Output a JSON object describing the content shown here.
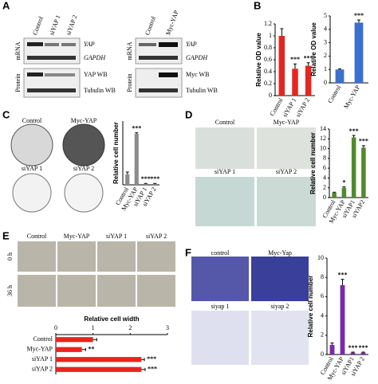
{
  "panel_labels": [
    "A",
    "B",
    "C",
    "D",
    "E",
    "F"
  ],
  "blots": {
    "left": {
      "columns": [
        "Control",
        "siYAP 1",
        "siYAP 2"
      ],
      "sections": [
        "mRNA",
        "Protein"
      ],
      "bands": [
        "YAP",
        "GAPDH",
        "YAP WB",
        "Tubulin WB"
      ]
    },
    "right": {
      "columns": [
        "Control",
        "Myc-YAP"
      ],
      "sections": [
        "mRNA",
        "Protein"
      ],
      "bands": [
        "YAP",
        "GAPDH",
        "Myc WB",
        "Tubulin WB"
      ]
    }
  },
  "colony_images": [
    "Control",
    "Myc-YAP",
    "siYAP 1",
    "siYAP 2"
  ],
  "invasion_images": [
    "Control",
    "Myc-YAP",
    "siYAP 1",
    "siYAP 2"
  ],
  "wound_images": {
    "columns": [
      "Control",
      "Myc-YAP",
      "siYAP 1",
      "siYAP 2"
    ],
    "rows": [
      "0 h",
      "36 h"
    ]
  },
  "transwell_images": [
    "control",
    "Myc-Yap",
    "siyap 1",
    "siyap 2"
  ],
  "chart_data": [
    {
      "type": "bar",
      "y_label": "Relative OD value",
      "categories": [
        "Control",
        "siYAP 1",
        "siYAP 2"
      ],
      "values": [
        1.0,
        0.45,
        0.5
      ],
      "errors": [
        0.12,
        0.08,
        0.05
      ],
      "significance": [
        null,
        "***",
        "***"
      ],
      "color": "#e8241f",
      "ylim": [
        0,
        1.2
      ],
      "yticks": [
        0,
        0.2,
        0.4,
        0.6,
        0.8,
        1,
        1.2
      ]
    },
    {
      "type": "bar",
      "y_label": "Relative OD value",
      "categories": [
        "Control",
        "Myc-YAP"
      ],
      "values": [
        1.0,
        4.5
      ],
      "errors": [
        0.05,
        0.2
      ],
      "significance": [
        null,
        "***"
      ],
      "color": "#3b6fd0",
      "ylim": [
        0,
        5
      ],
      "yticks": [
        0,
        1,
        2,
        3,
        4,
        5
      ]
    },
    {
      "type": "bar",
      "y_label": "Relative cell number",
      "categories": [
        "Control",
        "Myc-YAP",
        "siYAP 1",
        "siYAP 2"
      ],
      "values": [
        1.0,
        4.8,
        0.1,
        0.1
      ],
      "errors": [
        0.2,
        0.1,
        0.03,
        0.03
      ],
      "significance": [
        null,
        "***",
        "***",
        "***"
      ],
      "color": "#8c8c8c",
      "ylim": [
        0,
        6
      ]
    },
    {
      "type": "bar",
      "y_label": "Relative cell number",
      "categories": [
        "Control",
        "Myc-YAP",
        "siYAP1",
        "siYAP2"
      ],
      "values": [
        1.0,
        2.0,
        12.3,
        10.2
      ],
      "errors": [
        0.1,
        0.2,
        0.4,
        0.4
      ],
      "significance": [
        null,
        "*",
        "***",
        "***"
      ],
      "color": "#4f8a2b",
      "ylim": [
        0,
        14
      ],
      "yticks": [
        0,
        2,
        4,
        6,
        8,
        10,
        12,
        14
      ]
    },
    {
      "type": "hbar",
      "x_label": "Relative cell width",
      "categories": [
        "Control",
        "Myc-YAP",
        "siYAP 1",
        "siYAP 2"
      ],
      "values": [
        1.0,
        0.7,
        2.3,
        2.3
      ],
      "errors": [
        0.1,
        0.1,
        0.08,
        0.1
      ],
      "significance": [
        null,
        "**",
        "***",
        "***"
      ],
      "color": "#e8241f",
      "xlim": [
        0,
        3
      ],
      "xticks": [
        0,
        1,
        2,
        3
      ]
    },
    {
      "type": "bar",
      "y_label": "Relative cell number",
      "categories": [
        "Control",
        "Myc-YAP",
        "siYAP1",
        "siYAP 2"
      ],
      "values": [
        1.0,
        7.2,
        0.2,
        0.2
      ],
      "errors": [
        0.2,
        0.6,
        0.05,
        0.05
      ],
      "significance": [
        null,
        "***",
        "***",
        "***"
      ],
      "color": "#7a2aa8",
      "ylim": [
        0,
        10
      ],
      "yticks": [
        0,
        2,
        4,
        6,
        8,
        10
      ]
    }
  ]
}
